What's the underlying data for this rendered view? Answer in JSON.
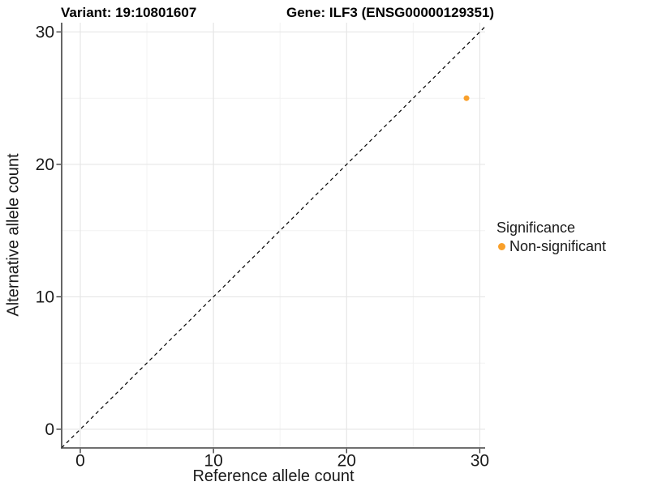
{
  "chart_data": {
    "type": "scatter",
    "titles": {
      "left": "Variant: 19:10801607",
      "right": "Gene: ILF3 (ENSG00000129351)"
    },
    "xlabel": "Reference allele count",
    "ylabel": "Alternative allele count",
    "x_ticks": [
      0,
      10,
      20,
      30
    ],
    "y_ticks": [
      0,
      10,
      20,
      30
    ],
    "x_minor_ticks": [
      5,
      15,
      25
    ],
    "y_minor_ticks": [
      5,
      15,
      25
    ],
    "xlim": [
      -1.4,
      30.4
    ],
    "ylim": [
      -1.41,
      30.7
    ],
    "grid": true,
    "reference_line": {
      "equation": "y = x",
      "style": "dashed",
      "color": "#000000"
    },
    "points": [
      {
        "x": 29,
        "y": 25,
        "series": "Non-significant"
      }
    ],
    "series": [
      {
        "name": "Non-significant",
        "color": "#F9A02B"
      }
    ],
    "legend": {
      "title": "Significance",
      "position": "right",
      "entries": [
        {
          "label": "Non-significant",
          "color": "#F9A02B"
        }
      ]
    },
    "colors": {
      "background": "#FFFFFF",
      "axis_line": "#404040",
      "tick_mark": "#333333",
      "grid_major": "#E6E6E6",
      "grid_minor": "#F2F2F2",
      "text": "#1A1A1A"
    }
  }
}
